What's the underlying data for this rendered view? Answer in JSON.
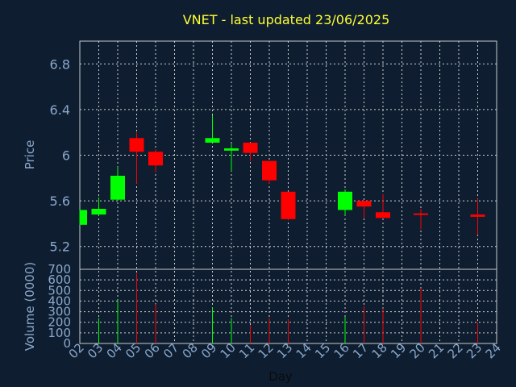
{
  "chart_data": {
    "type": "candlestick",
    "title": "VNET - last updated 23/06/2025",
    "ylabel": "Price",
    "volume_label": "Volume (0000)",
    "xlabel": "Day",
    "up_color": "#00ff00",
    "down_color": "#ff0000",
    "price_ylim": [
      5.0,
      7.0
    ],
    "price_ticks": [
      "5.2",
      "5.6",
      "6",
      "6.4",
      "6.8"
    ],
    "volume_ylim": [
      0,
      700
    ],
    "volume_ticks": [
      "0",
      "100",
      "200",
      "300",
      "400",
      "500",
      "600",
      "700"
    ],
    "x_ticks": [
      "02",
      "03",
      "04",
      "05",
      "06",
      "07",
      "08",
      "09",
      "10",
      "11",
      "12",
      "13",
      "14",
      "15",
      "16",
      "17",
      "18",
      "19",
      "20",
      "21",
      "22",
      "23",
      "24"
    ],
    "candles": [
      {
        "day": 2,
        "open": 5.39,
        "high": 5.52,
        "low": 5.39,
        "close": 5.52,
        "volume": 0
      },
      {
        "day": 3,
        "open": 5.48,
        "high": 5.63,
        "low": 5.47,
        "close": 5.53,
        "volume": 240
      },
      {
        "day": 4,
        "open": 5.61,
        "high": 5.9,
        "low": 5.6,
        "close": 5.82,
        "volume": 410
      },
      {
        "day": 5,
        "open": 6.15,
        "high": 6.2,
        "low": 5.75,
        "close": 6.03,
        "volume": 660
      },
      {
        "day": 6,
        "open": 6.03,
        "high": 6.05,
        "low": 5.85,
        "close": 5.91,
        "volume": 370
      },
      {
        "day": 9,
        "open": 6.11,
        "high": 6.35,
        "low": 6.11,
        "close": 6.15,
        "volume": 340
      },
      {
        "day": 10,
        "open": 6.04,
        "high": 6.1,
        "low": 5.86,
        "close": 6.06,
        "volume": 240
      },
      {
        "day": 11,
        "open": 6.11,
        "high": 6.11,
        "low": 5.95,
        "close": 6.02,
        "volume": 170
      },
      {
        "day": 12,
        "open": 5.95,
        "high": 5.95,
        "low": 5.75,
        "close": 5.78,
        "volume": 240
      },
      {
        "day": 13,
        "open": 5.68,
        "high": 5.68,
        "low": 5.43,
        "close": 5.44,
        "volume": 230
      },
      {
        "day": 16,
        "open": 5.52,
        "high": 5.7,
        "low": 5.47,
        "close": 5.68,
        "volume": 250
      },
      {
        "day": 17,
        "open": 5.6,
        "high": 5.6,
        "low": 5.45,
        "close": 5.55,
        "volume": 350
      },
      {
        "day": 18,
        "open": 5.5,
        "high": 5.66,
        "low": 5.45,
        "close": 5.45,
        "volume": 330
      },
      {
        "day": 20,
        "open": 5.49,
        "high": 5.53,
        "low": 5.35,
        "close": 5.48,
        "volume": 520
      },
      {
        "day": 23,
        "open": 5.48,
        "high": 5.62,
        "low": 5.3,
        "close": 5.46,
        "volume": 200
      }
    ]
  }
}
